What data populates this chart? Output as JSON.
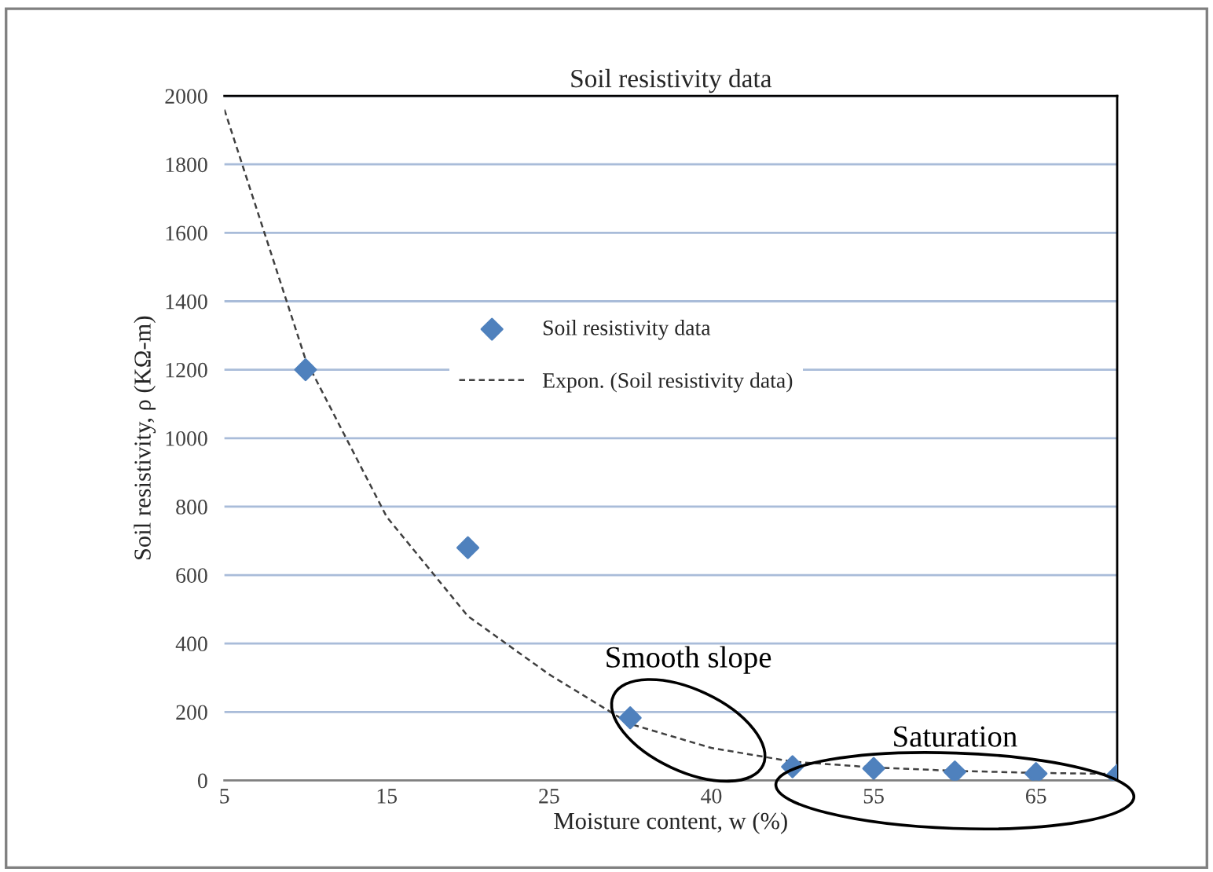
{
  "chart_data": {
    "type": "scatter",
    "title": "Soil resistivity data",
    "xlabel": "Moisture content, w (%)",
    "ylabel": "Soil resistivity, ρ (KΩ-m)",
    "categories": [
      "5",
      null,
      "15",
      null,
      "25",
      null,
      "40",
      null,
      "55",
      null,
      "65",
      null
    ],
    "series": [
      {
        "name": "Soil resistivity data",
        "color": "#4f81bd",
        "marker": "diamond",
        "values": [
          null,
          1200,
          null,
          680,
          null,
          183,
          null,
          40,
          35,
          25,
          20,
          15
        ]
      },
      {
        "name": "Expon. (Soil resistivity data)",
        "type": "line",
        "color": "#404040",
        "line_style": "dashed",
        "marker": "none",
        "values": [
          1960,
          1230,
          770,
          480,
          310,
          165,
          95,
          55,
          38,
          28,
          22,
          19
        ]
      }
    ],
    "ylim": [
      0,
      2000
    ],
    "yticks": [
      0,
      200,
      400,
      600,
      800,
      1000,
      1200,
      1400,
      1600,
      1800,
      2000
    ],
    "grid": "y",
    "legend": "center",
    "annotations": [
      "Smooth slope",
      "Saturation"
    ]
  }
}
